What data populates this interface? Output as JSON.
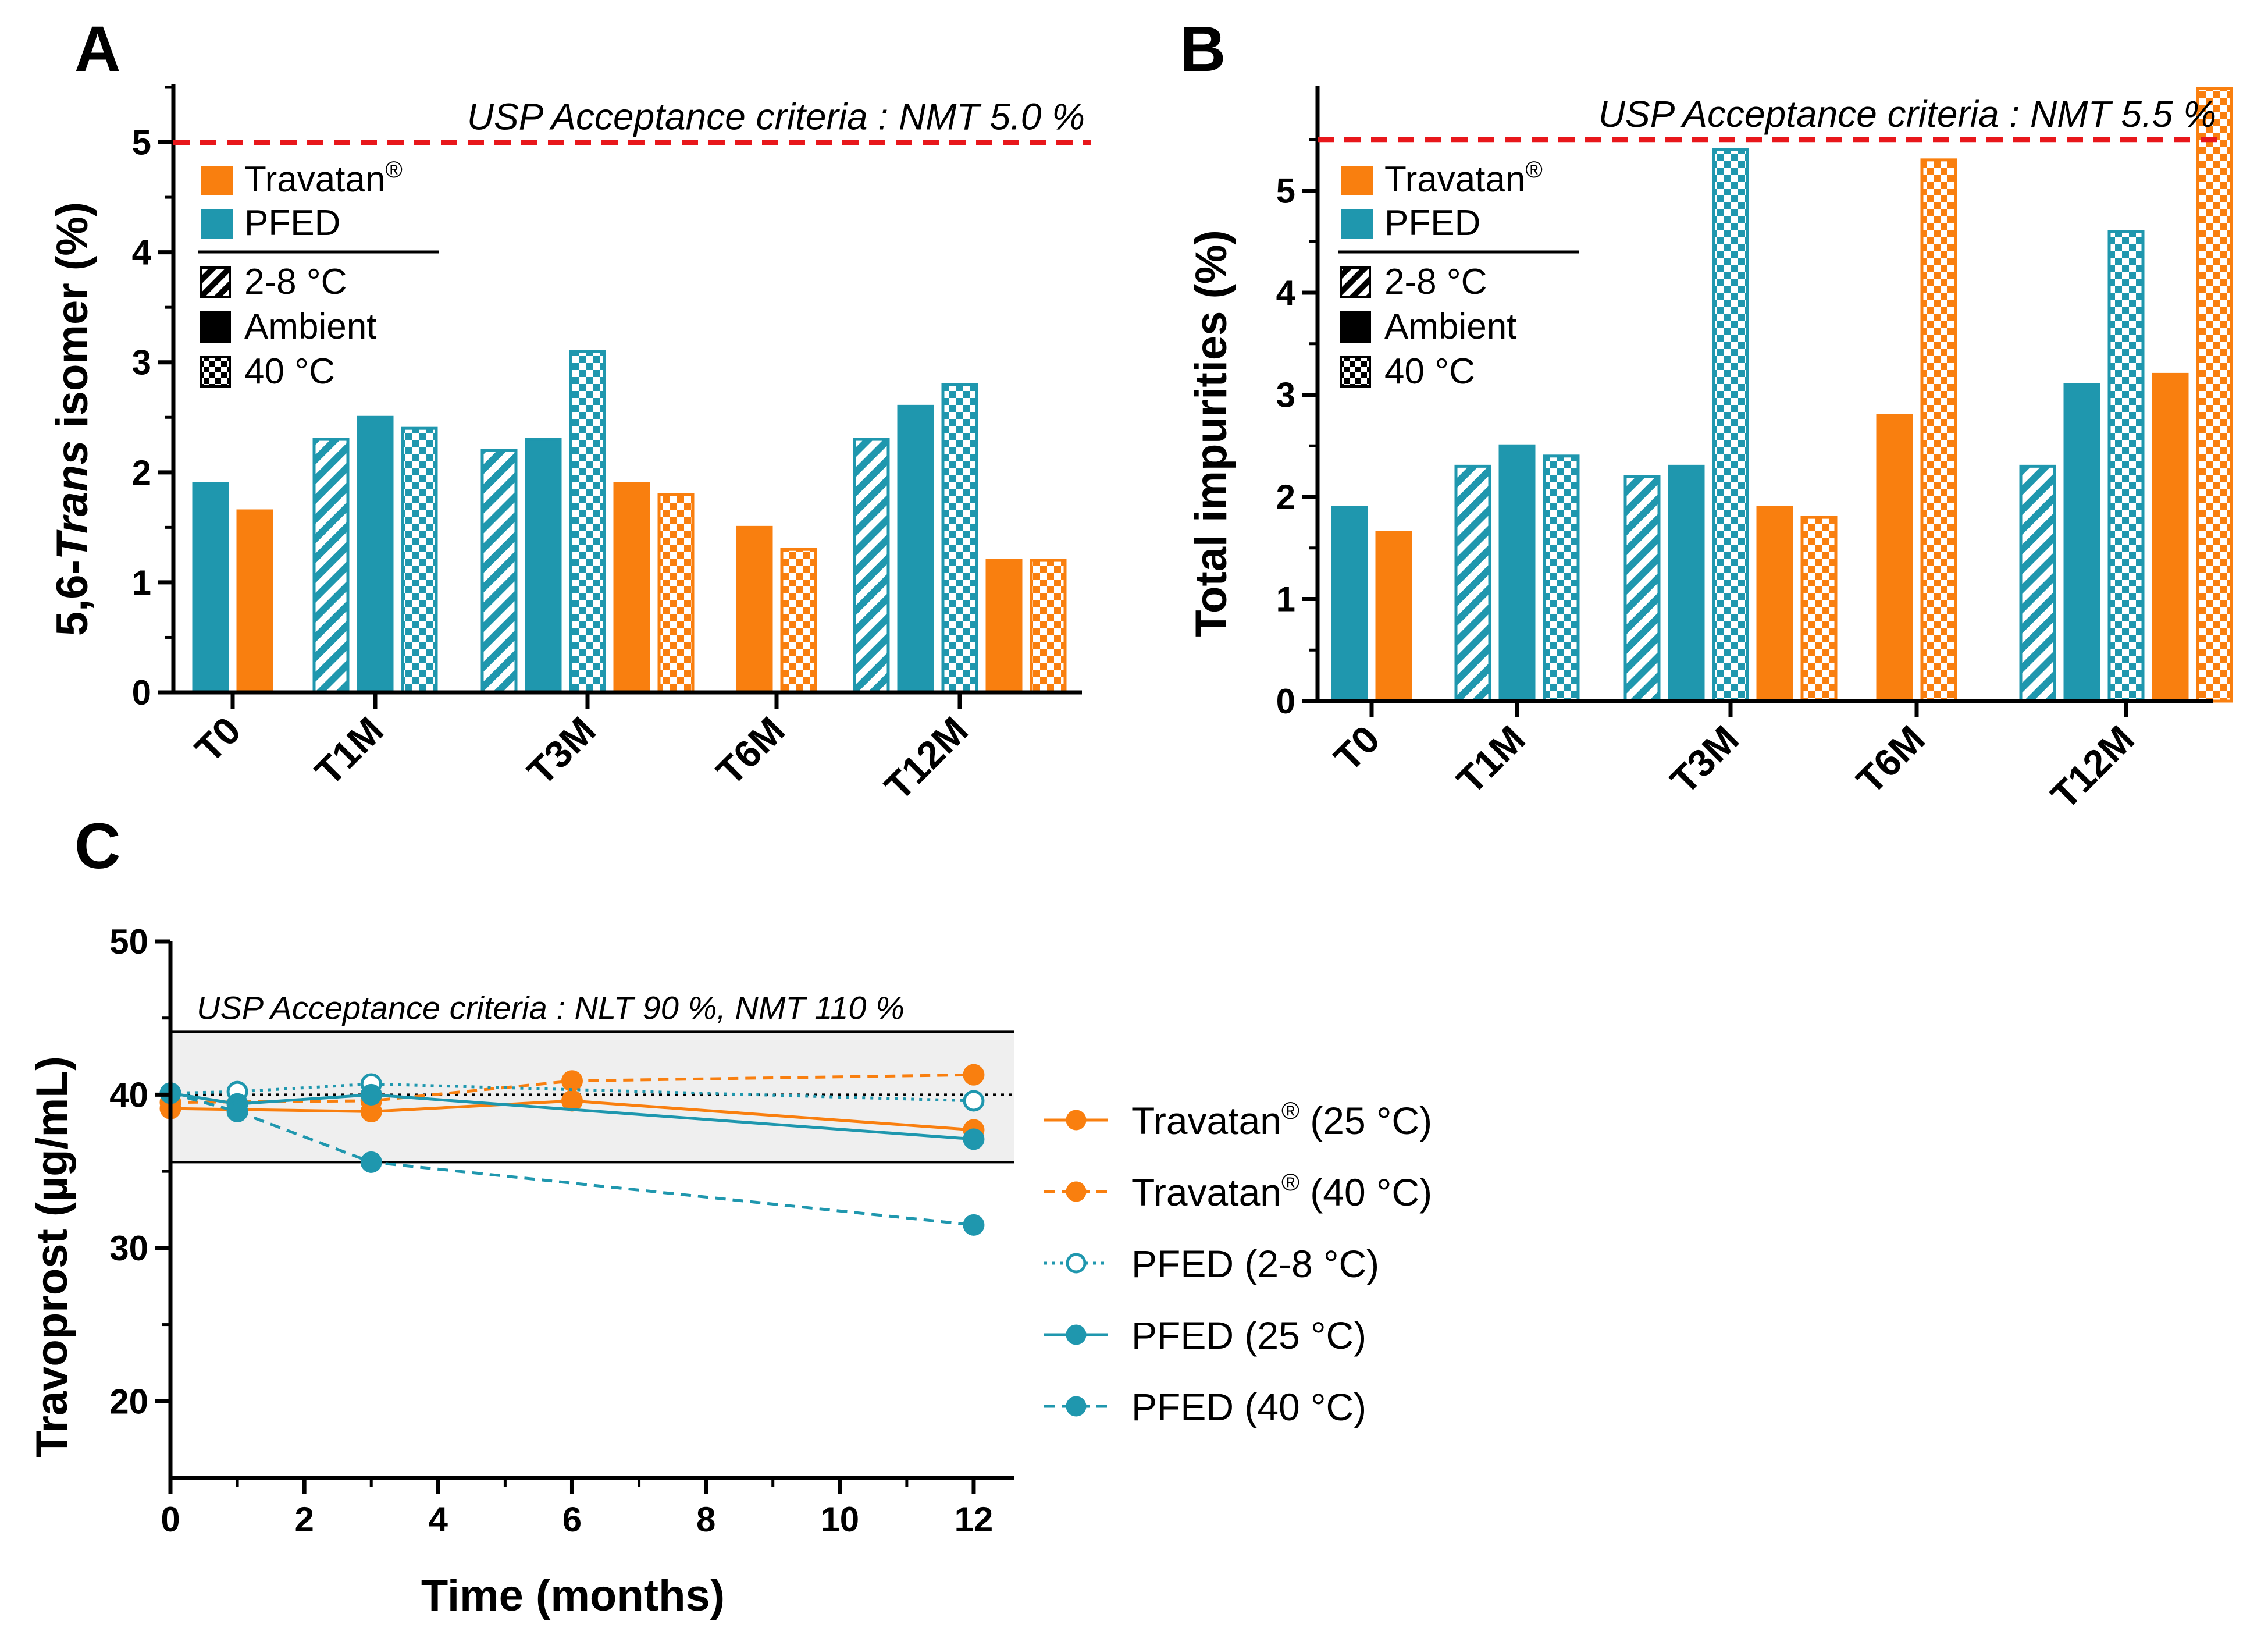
{
  "colors": {
    "travatan": "#F97F0F",
    "pfed": "#1F97AE",
    "acceptance_line": "#E8171B",
    "band": "#EFEFEF"
  },
  "icons": {
    "slash": "hatch-pattern",
    "solid": "solid-fill",
    "checker": "checker-pattern"
  },
  "chart_data": [
    {
      "id": "A",
      "panel_label": "A",
      "type": "bar",
      "ylabel_prefix": "5,6-",
      "ylabel_italic": "Trans",
      "ylabel_suffix": " isomer (%)",
      "ylim": [
        0,
        5.5
      ],
      "yticks": [
        0,
        1,
        2,
        3,
        4,
        5
      ],
      "ytick_labels": [
        "0",
        "1",
        "2",
        "3",
        "4",
        "5"
      ],
      "acceptance": {
        "value": 5.0,
        "label": "USP Acceptance criteria : NMT 5.0 %"
      },
      "categories": [
        "T0",
        "T1M",
        "T3M",
        "T6M",
        "T12M"
      ],
      "legend": {
        "products": [
          "Travatan",
          "PFED"
        ],
        "registered_mark": "®",
        "conditions": [
          "2-8 °C",
          "Ambient",
          "40 °C"
        ]
      },
      "bars": [
        {
          "category": "T0",
          "product": "PFED",
          "condition": "Ambient",
          "value": 1.9
        },
        {
          "category": "T0",
          "product": "Travatan",
          "condition": "Ambient",
          "value": 1.65
        },
        {
          "category": "T1M",
          "product": "PFED",
          "condition": "2-8 °C",
          "value": 2.3
        },
        {
          "category": "T1M",
          "product": "PFED",
          "condition": "Ambient",
          "value": 2.5
        },
        {
          "category": "T1M",
          "product": "PFED",
          "condition": "40 °C",
          "value": 2.4
        },
        {
          "category": "T3M",
          "product": "PFED",
          "condition": "2-8 °C",
          "value": 2.2
        },
        {
          "category": "T3M",
          "product": "PFED",
          "condition": "Ambient",
          "value": 2.3
        },
        {
          "category": "T3M",
          "product": "PFED",
          "condition": "40 °C",
          "value": 3.1
        },
        {
          "category": "T3M",
          "product": "Travatan",
          "condition": "Ambient",
          "value": 1.9
        },
        {
          "category": "T3M",
          "product": "Travatan",
          "condition": "40 °C",
          "value": 1.8
        },
        {
          "category": "T6M",
          "product": "Travatan",
          "condition": "Ambient",
          "value": 1.5
        },
        {
          "category": "T6M",
          "product": "Travatan",
          "condition": "40 °C",
          "value": 1.3
        },
        {
          "category": "T12M",
          "product": "PFED",
          "condition": "2-8 °C",
          "value": 2.3
        },
        {
          "category": "T12M",
          "product": "PFED",
          "condition": "Ambient",
          "value": 2.6
        },
        {
          "category": "T12M",
          "product": "PFED",
          "condition": "40 °C",
          "value": 2.8
        },
        {
          "category": "T12M",
          "product": "Travatan",
          "condition": "Ambient",
          "value": 1.2
        },
        {
          "category": "T12M",
          "product": "Travatan",
          "condition": "40 °C",
          "value": 1.2
        }
      ]
    },
    {
      "id": "B",
      "panel_label": "B",
      "type": "bar",
      "ylabel": "Total impurities (%)",
      "ylim": [
        0,
        6.0
      ],
      "yticks": [
        0,
        1,
        2,
        3,
        4,
        5
      ],
      "ytick_labels": [
        "0",
        "1",
        "2",
        "3",
        "4",
        "5"
      ],
      "acceptance": {
        "value": 5.5,
        "label": "USP Acceptance criteria : NMT 5.5 %"
      },
      "categories": [
        "T0",
        "T1M",
        "T3M",
        "T6M",
        "T12M"
      ],
      "legend": {
        "products": [
          "Travatan",
          "PFED"
        ],
        "registered_mark": "®",
        "conditions": [
          "2-8 °C",
          "Ambient",
          "40 °C"
        ]
      },
      "bars": [
        {
          "category": "T0",
          "product": "PFED",
          "condition": "Ambient",
          "value": 1.9
        },
        {
          "category": "T0",
          "product": "Travatan",
          "condition": "Ambient",
          "value": 1.65
        },
        {
          "category": "T1M",
          "product": "PFED",
          "condition": "2-8 °C",
          "value": 2.3
        },
        {
          "category": "T1M",
          "product": "PFED",
          "condition": "Ambient",
          "value": 2.5
        },
        {
          "category": "T1M",
          "product": "PFED",
          "condition": "40 °C",
          "value": 2.4
        },
        {
          "category": "T3M",
          "product": "PFED",
          "condition": "2-8 °C",
          "value": 2.2
        },
        {
          "category": "T3M",
          "product": "PFED",
          "condition": "Ambient",
          "value": 2.3
        },
        {
          "category": "T3M",
          "product": "PFED",
          "condition": "40 °C",
          "value": 5.4
        },
        {
          "category": "T3M",
          "product": "Travatan",
          "condition": "Ambient",
          "value": 1.9
        },
        {
          "category": "T3M",
          "product": "Travatan",
          "condition": "40 °C",
          "value": 1.8
        },
        {
          "category": "T6M",
          "product": "Travatan",
          "condition": "Ambient",
          "value": 2.8
        },
        {
          "category": "T6M",
          "product": "Travatan",
          "condition": "40 °C",
          "value": 5.3
        },
        {
          "category": "T12M",
          "product": "PFED",
          "condition": "2-8 °C",
          "value": 2.3
        },
        {
          "category": "T12M",
          "product": "PFED",
          "condition": "Ambient",
          "value": 3.1
        },
        {
          "category": "T12M",
          "product": "PFED",
          "condition": "40 °C",
          "value": 4.6
        },
        {
          "category": "T12M",
          "product": "Travatan",
          "condition": "Ambient",
          "value": 3.2
        },
        {
          "category": "T12M",
          "product": "Travatan",
          "condition": "40 °C",
          "value": 6.0
        }
      ]
    },
    {
      "id": "C",
      "panel_label": "C",
      "type": "line",
      "xlabel": "Time (months)",
      "ylabel": "Travoprost (µg/mL)",
      "xlim": [
        0,
        12.6
      ],
      "ylim": [
        15,
        50
      ],
      "xticks": [
        0,
        2,
        4,
        6,
        8,
        10,
        12
      ],
      "xtick_labels": [
        "0",
        "2",
        "4",
        "6",
        "8",
        "10",
        "12"
      ],
      "yticks": [
        20,
        30,
        40,
        50
      ],
      "ytick_labels": [
        "20",
        "30",
        "40",
        "50"
      ],
      "reference_line": 40,
      "band": {
        "low": 35.6,
        "high": 44.1,
        "label": "USP Acceptance criteria : NLT 90 %, NMT 110 %"
      },
      "series": [
        {
          "name": "Travatan (25 °C)",
          "label_main": "Travatan",
          "label_mark": "®",
          "label_tail": " (25 °C)",
          "product": "Travatan",
          "style": "solid",
          "marker": "filled",
          "x": [
            0,
            3,
            6,
            12
          ],
          "y": [
            39.1,
            38.9,
            39.6,
            37.7
          ]
        },
        {
          "name": "Travatan (40 °C)",
          "label_main": "Travatan",
          "label_mark": "®",
          "label_tail": " (40 °C)",
          "product": "Travatan",
          "style": "dashed",
          "marker": "filled",
          "x": [
            0,
            3,
            6,
            12
          ],
          "y": [
            39.5,
            39.6,
            40.9,
            41.3
          ]
        },
        {
          "name": "PFED (2-8 °C)",
          "label_main": "PFED (2-8 °C)",
          "label_mark": "",
          "label_tail": "",
          "product": "PFED",
          "style": "dotted",
          "marker": "open",
          "x": [
            0,
            1,
            3,
            12
          ],
          "y": [
            40.1,
            40.2,
            40.7,
            39.6
          ]
        },
        {
          "name": "PFED (25 °C)",
          "label_main": "PFED (25 °C)",
          "label_mark": "",
          "label_tail": "",
          "product": "PFED",
          "style": "solid",
          "marker": "filled",
          "x": [
            0,
            1,
            3,
            12
          ],
          "y": [
            40.1,
            39.4,
            40.0,
            37.1
          ]
        },
        {
          "name": "PFED (40 °C)",
          "label_main": "PFED (40 °C)",
          "label_mark": "",
          "label_tail": "",
          "product": "PFED",
          "style": "dashed",
          "marker": "filled",
          "x": [
            0,
            1,
            3,
            12
          ],
          "y": [
            40.1,
            38.9,
            35.6,
            31.5
          ]
        }
      ]
    }
  ]
}
